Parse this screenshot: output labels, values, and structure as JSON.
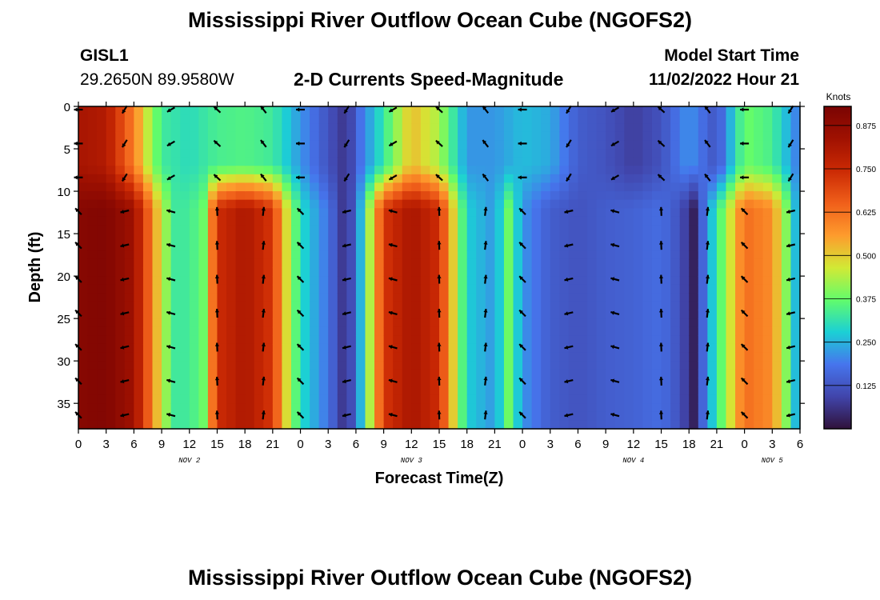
{
  "page": {
    "title": "Mississippi River Outflow Ocean Cube (NGOFS2)",
    "bottom_title": "Mississippi River Outflow Ocean Cube (NGOFS2)",
    "station": "GISL1",
    "coords": "29.2650N  89.9580W",
    "subtitle": "2-D Currents Speed-Magnitude",
    "model_start_label": "Model Start Time",
    "model_start_value": "11/02/2022 Hour 21"
  },
  "chart_data": {
    "type": "heatmap",
    "title": "2-D Currents Speed-Magnitude",
    "xlabel": "Forecast Time(Z)",
    "ylabel": "Depth (ft)",
    "colorbar_label": "Knots",
    "colorbar_ticks": [
      "0.875",
      "0.750",
      "0.625",
      "0.500",
      "0.375",
      "0.250",
      "0.125"
    ],
    "colorbar_range": [
      0.0,
      0.93
    ],
    "x_range_hours": [
      0,
      78
    ],
    "x_ticks": [
      "0",
      "3",
      "6",
      "9",
      "12",
      "15",
      "18",
      "21",
      "0",
      "3",
      "6",
      "9",
      "12",
      "15",
      "18",
      "21",
      "0",
      "3",
      "6",
      "9",
      "12",
      "15",
      "18",
      "21",
      "0",
      "3",
      "6"
    ],
    "date_labels": [
      {
        "text": "NOV 2",
        "hour": 12
      },
      {
        "text": "NOV 3",
        "hour": 36
      },
      {
        "text": "NOV 4",
        "hour": 60
      },
      {
        "text": "NOV 5",
        "hour": 75
      }
    ],
    "y_range_ft": [
      0,
      38
    ],
    "y_ticks": [
      "0",
      "5",
      "10",
      "15",
      "20",
      "25",
      "30",
      "35"
    ],
    "y_tick_values": [
      0,
      5,
      10,
      15,
      20,
      25,
      30,
      35
    ],
    "surface_speed_knots": [
      [
        0,
        0.82
      ],
      [
        3,
        0.8
      ],
      [
        6,
        0.6
      ],
      [
        7.5,
        0.45
      ],
      [
        9,
        0.33
      ],
      [
        12,
        0.3
      ],
      [
        15,
        0.34
      ],
      [
        18,
        0.35
      ],
      [
        21,
        0.33
      ],
      [
        24,
        0.22
      ],
      [
        27,
        0.12
      ],
      [
        29,
        0.06
      ],
      [
        30.5,
        0.18
      ],
      [
        33,
        0.32
      ],
      [
        36,
        0.52
      ],
      [
        39,
        0.43
      ],
      [
        42,
        0.22
      ],
      [
        45,
        0.22
      ],
      [
        48,
        0.26
      ],
      [
        51,
        0.24
      ],
      [
        54,
        0.14
      ],
      [
        57,
        0.12
      ],
      [
        60,
        0.08
      ],
      [
        63,
        0.12
      ],
      [
        66,
        0.22
      ],
      [
        69,
        0.12
      ],
      [
        72,
        0.38
      ],
      [
        75,
        0.34
      ],
      [
        78,
        0.18
      ]
    ],
    "lower_speed_knots": [
      [
        0,
        0.9
      ],
      [
        3,
        0.91
      ],
      [
        6,
        0.84
      ],
      [
        7.5,
        0.66
      ],
      [
        9,
        0.45
      ],
      [
        10.5,
        0.33
      ],
      [
        12,
        0.33
      ],
      [
        13.5,
        0.38
      ],
      [
        15,
        0.74
      ],
      [
        18,
        0.81
      ],
      [
        21,
        0.72
      ],
      [
        22.5,
        0.48
      ],
      [
        24,
        0.3
      ],
      [
        27,
        0.18
      ],
      [
        29,
        0.04
      ],
      [
        30.5,
        0.25
      ],
      [
        33,
        0.72
      ],
      [
        36,
        0.82
      ],
      [
        39,
        0.74
      ],
      [
        40.5,
        0.5
      ],
      [
        42,
        0.28
      ],
      [
        45,
        0.22
      ],
      [
        46.5,
        0.38
      ],
      [
        48,
        0.22
      ],
      [
        51,
        0.14
      ],
      [
        54,
        0.12
      ],
      [
        57,
        0.14
      ],
      [
        60,
        0.15
      ],
      [
        63,
        0.17
      ],
      [
        65,
        0.12
      ],
      [
        66.5,
        0.03
      ],
      [
        68,
        0.22
      ],
      [
        70,
        0.42
      ],
      [
        72,
        0.63
      ],
      [
        75,
        0.58
      ],
      [
        77,
        0.34
      ],
      [
        78,
        0.18
      ]
    ],
    "surface_layer_depth_ft": 9.5,
    "arrow_depths_ft": [
      0,
      4,
      8,
      12,
      16,
      20,
      24,
      28,
      32,
      36
    ],
    "arrow_hours": [
      0,
      5,
      10,
      15,
      20,
      24,
      29,
      34,
      39,
      44,
      48,
      53,
      58,
      63,
      68,
      72,
      77
    ]
  }
}
